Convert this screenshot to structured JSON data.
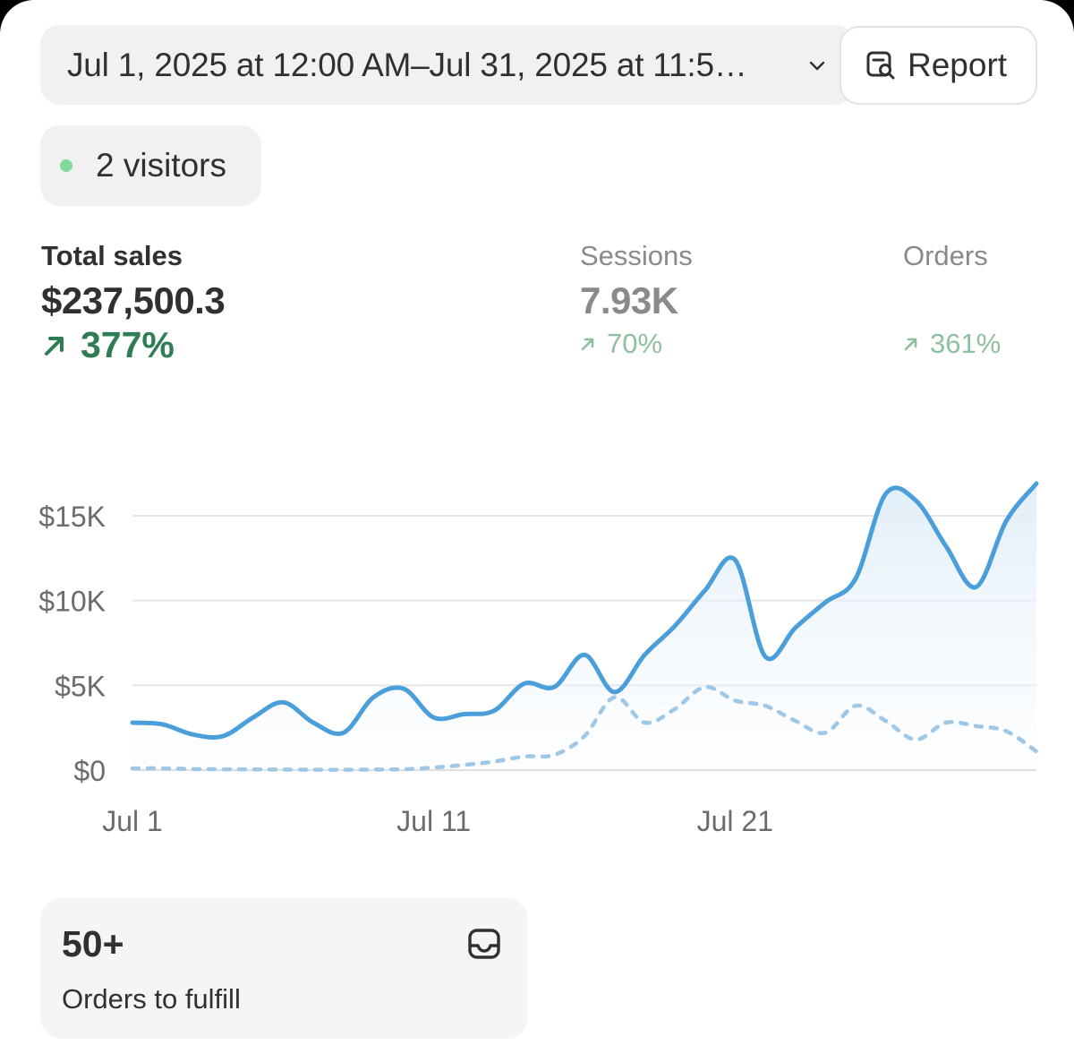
{
  "date_range": {
    "label": "Jul 1, 2025 at 12:00 AM–Jul 31, 2025 at 11:5…"
  },
  "report": {
    "label": "Report"
  },
  "live": {
    "visitors_label": "2 visitors",
    "dot_color": "#7fdc98"
  },
  "metrics": {
    "total_sales": {
      "label": "Total sales",
      "value": "$237,500.3",
      "change": "377%"
    },
    "sessions": {
      "label": "Sessions",
      "value": "7.93K",
      "change": "70%"
    },
    "orders": {
      "label": "Orders",
      "value": "",
      "change": "361%"
    }
  },
  "chart_data": {
    "type": "line",
    "x_ticks": [
      "Jul 1",
      "Jul 11",
      "Jul 21"
    ],
    "y_ticks": [
      "$15K",
      "$10K",
      "$5K",
      "$0"
    ],
    "y_tick_values": [
      15000,
      10000,
      5000,
      0
    ],
    "ylim": [
      0,
      17000
    ],
    "x": [
      1,
      2,
      3,
      4,
      5,
      6,
      7,
      8,
      9,
      10,
      11,
      12,
      13,
      14,
      15,
      16,
      17,
      18,
      19,
      20,
      21,
      22,
      23,
      24,
      25,
      26,
      27,
      28,
      29,
      30,
      31
    ],
    "series": [
      {
        "style": "solid",
        "color": "#4a9fdb",
        "values": [
          2800,
          2700,
          2100,
          2000,
          3100,
          4000,
          2800,
          2200,
          4300,
          4800,
          3100,
          3300,
          3500,
          5100,
          4900,
          6800,
          4600,
          6800,
          8500,
          10600,
          12400,
          6700,
          8400,
          9900,
          11300,
          16300,
          15900,
          13200,
          10800,
          14700,
          16900
        ]
      },
      {
        "style": "dashed",
        "color": "#9fc8e6",
        "values": [
          100,
          100,
          60,
          50,
          40,
          30,
          20,
          20,
          30,
          50,
          150,
          300,
          500,
          800,
          900,
          2000,
          4300,
          2800,
          3600,
          4900,
          4100,
          3800,
          2900,
          2200,
          3800,
          2900,
          1800,
          2800,
          2600,
          2300,
          1100
        ]
      }
    ],
    "grid": true
  },
  "fulfill_card": {
    "value": "50+",
    "label": "Orders to fulfill"
  },
  "colors": {
    "accent_green": "#2f7d52",
    "muted_green": "#8fbfa1",
    "line_blue": "#4a9fdb"
  },
  "icons": {
    "report": "report-search-icon",
    "chevron": "chevron-down-icon",
    "inbox": "inbox-icon",
    "arrow": "arrow-up-right-icon"
  }
}
